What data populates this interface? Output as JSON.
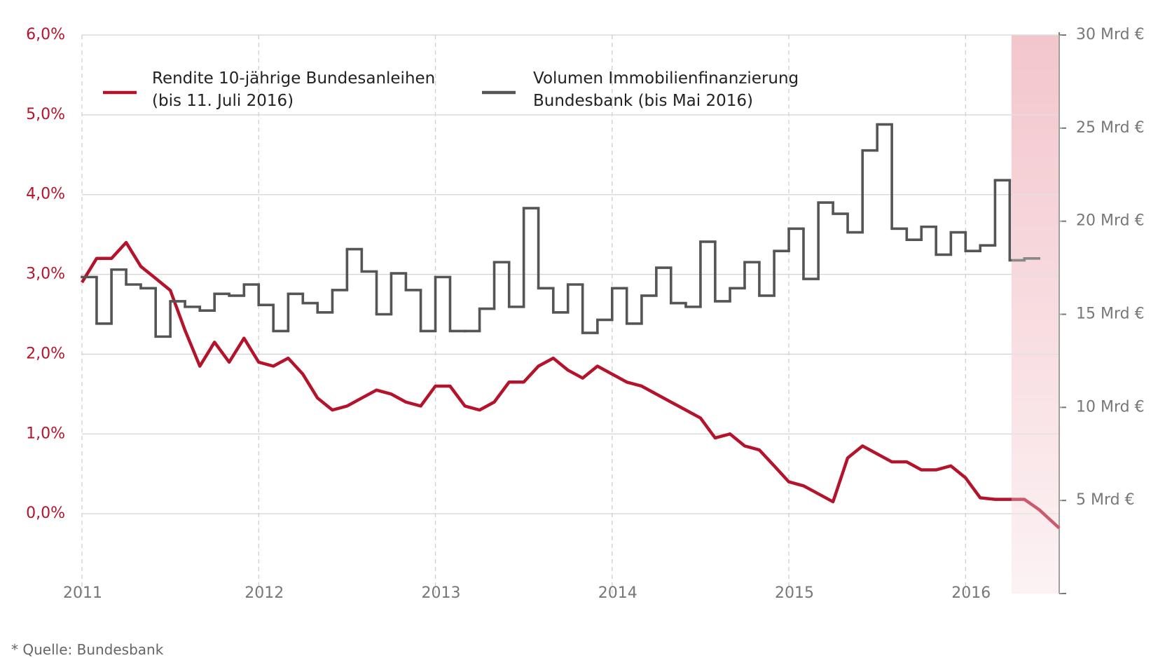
{
  "chart_data": {
    "type": "line",
    "x_note_free": null,
    "xlim": [
      2011,
      2016.53
    ],
    "xticks": [
      2011,
      2012,
      2013,
      2014,
      2015,
      2016
    ],
    "ylim": [
      -1,
      6
    ],
    "yticks": [
      {
        "value": 0,
        "label": "0,0%"
      },
      {
        "value": 1,
        "label": "1,0%"
      },
      {
        "value": 2,
        "label": "2,0%"
      },
      {
        "value": 3,
        "label": "3,0%"
      },
      {
        "value": 4,
        "label": "4,0%"
      },
      {
        "value": 5,
        "label": "5,0%"
      },
      {
        "value": 6,
        "label": "6,0%"
      }
    ],
    "y2lim": [
      0,
      30
    ],
    "y2ticks": [
      {
        "value": 5,
        "label": "5 Mrd €"
      },
      {
        "value": 10,
        "label": "10 Mrd €"
      },
      {
        "value": 15,
        "label": "15 Mrd €"
      },
      {
        "value": 20,
        "label": "20 Mrd €"
      },
      {
        "value": 25,
        "label": "25 Mrd €"
      },
      {
        "value": 30,
        "label": "30 Mrd €"
      }
    ],
    "grid": true,
    "highlight": [
      2016.26,
      2016.53
    ],
    "series": [
      {
        "name": "Rendite 10-jährige Bundesanleihen (bis 11. Juli 2016)",
        "color": "#b5132b",
        "axis": "y",
        "x": [
          2011,
          2011.083,
          2011.167,
          2011.25,
          2011.333,
          2011.417,
          2011.5,
          2011.583,
          2011.667,
          2011.75,
          2011.833,
          2011.917,
          2012,
          2012.083,
          2012.167,
          2012.25,
          2012.333,
          2012.417,
          2012.5,
          2012.583,
          2012.667,
          2012.75,
          2012.833,
          2012.917,
          2013,
          2013.083,
          2013.167,
          2013.25,
          2013.333,
          2013.417,
          2013.5,
          2013.583,
          2013.667,
          2013.75,
          2013.833,
          2013.917,
          2014,
          2014.083,
          2014.167,
          2014.25,
          2014.333,
          2014.417,
          2014.5,
          2014.583,
          2014.667,
          2014.75,
          2014.833,
          2014.917,
          2015,
          2015.083,
          2015.167,
          2015.25,
          2015.333,
          2015.417,
          2015.5,
          2015.583,
          2015.667,
          2015.75,
          2015.833,
          2015.917,
          2016,
          2016.083,
          2016.167,
          2016.25,
          2016.333,
          2016.417,
          2016.53
        ],
        "values": [
          2.9,
          3.2,
          3.2,
          3.4,
          3.1,
          2.95,
          2.8,
          2.3,
          1.85,
          2.15,
          1.9,
          2.2,
          1.9,
          1.85,
          1.95,
          1.75,
          1.45,
          1.3,
          1.35,
          1.45,
          1.55,
          1.5,
          1.4,
          1.35,
          1.6,
          1.6,
          1.35,
          1.3,
          1.4,
          1.65,
          1.65,
          1.85,
          1.95,
          1.8,
          1.7,
          1.85,
          1.75,
          1.65,
          1.6,
          1.5,
          1.4,
          1.3,
          1.2,
          0.95,
          1.0,
          0.85,
          0.8,
          0.6,
          0.4,
          0.35,
          0.25,
          0.15,
          0.7,
          0.85,
          0.75,
          0.65,
          0.65,
          0.55,
          0.55,
          0.6,
          0.45,
          0.2,
          0.18,
          0.18,
          0.18,
          0.05,
          -0.18
        ]
      },
      {
        "name": "Volumen Immobilienfinanzierung Bundesbank (bis Mai 2016)",
        "color": "#555555",
        "axis": "y2",
        "x": [
          2011,
          2011.083,
          2011.167,
          2011.25,
          2011.333,
          2011.417,
          2011.5,
          2011.583,
          2011.667,
          2011.75,
          2011.833,
          2011.917,
          2012,
          2012.083,
          2012.167,
          2012.25,
          2012.333,
          2012.417,
          2012.5,
          2012.583,
          2012.667,
          2012.75,
          2012.833,
          2012.917,
          2013,
          2013.083,
          2013.167,
          2013.25,
          2013.333,
          2013.417,
          2013.5,
          2013.583,
          2013.667,
          2013.75,
          2013.833,
          2013.917,
          2014,
          2014.083,
          2014.167,
          2014.25,
          2014.333,
          2014.417,
          2014.5,
          2014.583,
          2014.667,
          2014.75,
          2014.833,
          2014.917,
          2015,
          2015.083,
          2015.167,
          2015.25,
          2015.333,
          2015.417,
          2015.5,
          2015.583,
          2015.667,
          2015.75,
          2015.833,
          2015.917,
          2016,
          2016.083,
          2016.167,
          2016.25,
          2016.333
        ],
        "values": [
          17.0,
          14.5,
          17.4,
          16.6,
          16.4,
          13.8,
          15.7,
          15.4,
          15.2,
          16.1,
          16.0,
          16.6,
          15.5,
          14.1,
          16.1,
          15.6,
          15.1,
          16.3,
          18.5,
          17.3,
          15.0,
          17.2,
          16.3,
          14.1,
          17.0,
          14.1,
          14.1,
          15.3,
          17.8,
          15.4,
          20.7,
          16.4,
          15.1,
          16.6,
          14.0,
          14.7,
          16.4,
          14.5,
          16.0,
          17.5,
          15.6,
          15.4,
          18.9,
          15.7,
          16.4,
          17.8,
          16.0,
          18.4,
          19.6,
          16.9,
          21.0,
          20.4,
          19.4,
          23.8,
          25.2,
          19.6,
          19.0,
          19.7,
          18.2,
          19.4,
          18.4,
          18.7,
          22.2,
          17.9,
          18.0
        ]
      }
    ],
    "source": "* Quelle: Bundesbank"
  }
}
